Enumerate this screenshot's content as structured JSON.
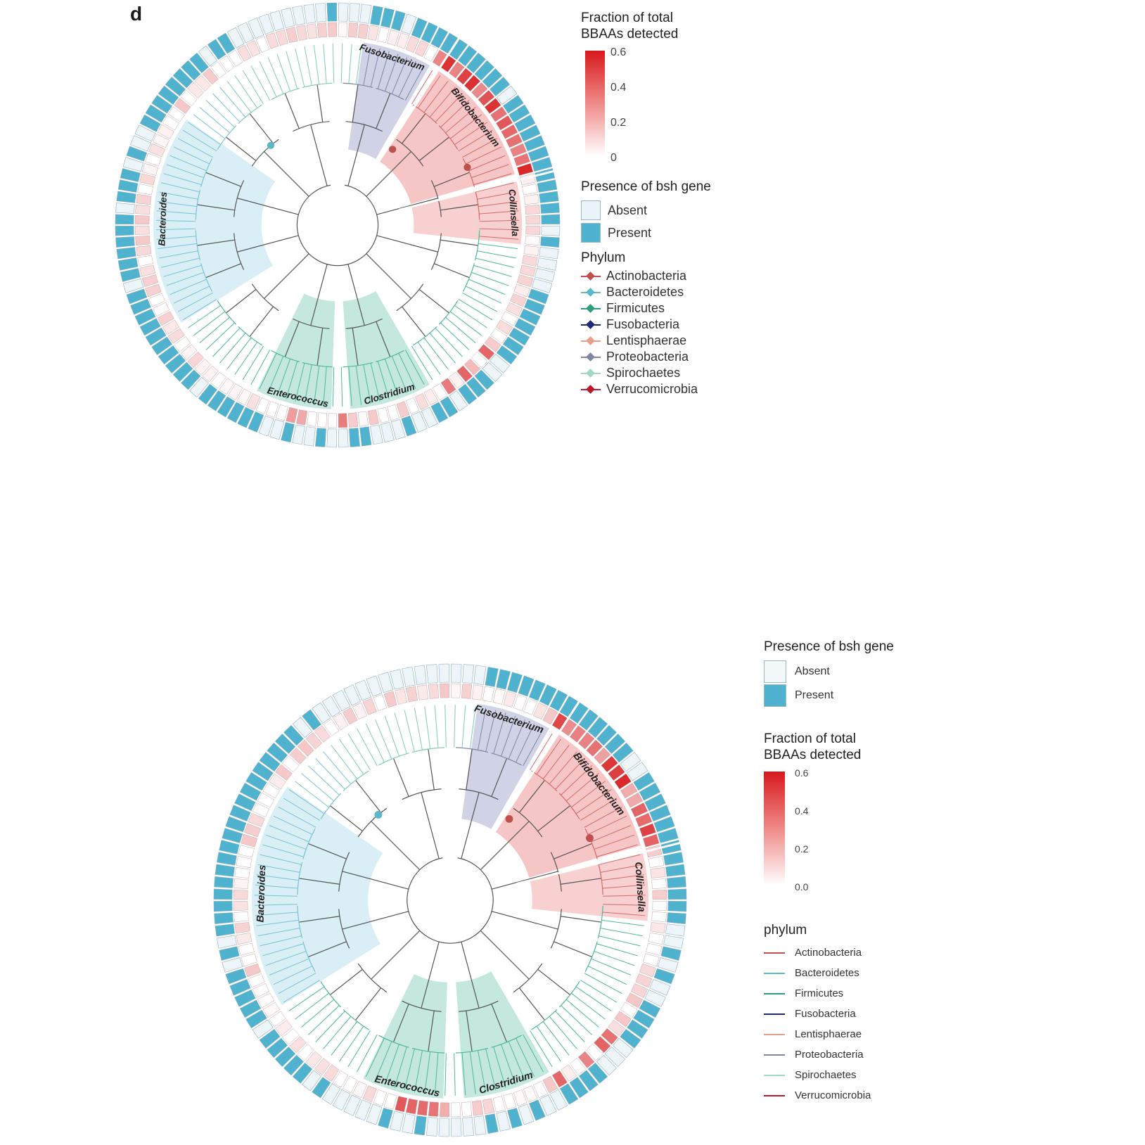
{
  "panel_letter": "d",
  "top": {
    "clade_labels": [
      "Fusobacterium",
      "Bifidobacterium",
      "Collinsella",
      "Bacteroides",
      "Enterococcus",
      "Clostridium"
    ],
    "legend": {
      "fraction_title_1": "Fraction of total",
      "fraction_title_2": "BBAAs detected",
      "fraction_ticks": [
        "0.6",
        "0.4",
        "0.2",
        "0"
      ],
      "bsh_title": "Presence of bsh gene",
      "absent": "Absent",
      "present": "Present",
      "phylum_title": "Phylum"
    }
  },
  "bottom": {
    "clade_labels": [
      "Fusobacterium",
      "Bifidobacterium",
      "Collinsella",
      "Bacteroides",
      "Enterococcus",
      "Clostridium"
    ],
    "legend": {
      "bsh_title": "Presence of bsh gene",
      "absent": "Absent",
      "present": "Present",
      "fraction_title_1": "Fraction of total",
      "fraction_title_2": "BBAAs detected",
      "fraction_ticks": [
        "0.6",
        "0.4",
        "0.2",
        "0.0"
      ],
      "phylum_title": "phylum"
    }
  },
  "phyla": [
    {
      "name": "Actinobacteria",
      "color": "#c0504d"
    },
    {
      "name": "Bacteroidetes",
      "color": "#5bb8c9"
    },
    {
      "name": "Firmicutes",
      "color": "#2e9e7e"
    },
    {
      "name": "Fusobacteria",
      "color": "#1f2a7a"
    },
    {
      "name": "Lentisphaerae",
      "color": "#e6a08a"
    },
    {
      "name": "Proteobacteria",
      "color": "#7f86a8"
    },
    {
      "name": "Spirochaetes",
      "color": "#9fd8c6"
    },
    {
      "name": "Verrucomicrobia",
      "color": "#c0192f"
    }
  ],
  "colors": {
    "present": "#4fb3cf",
    "absent": "#eef5f9",
    "heat_max": "#d7191c",
    "heat_min": "#ffffff"
  }
}
